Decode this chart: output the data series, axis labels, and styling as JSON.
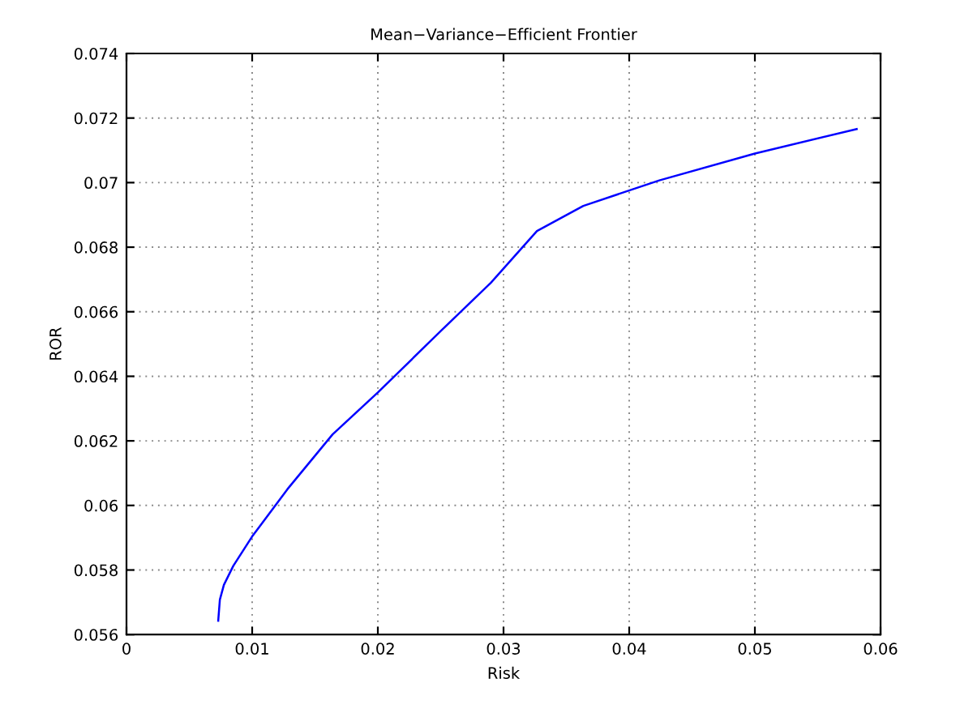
{
  "chart_data": {
    "type": "line",
    "title": "Mean−Variance−Efficient Frontier",
    "xlabel": "Risk",
    "ylabel": "ROR",
    "x": [
      0.0073,
      0.00743,
      0.00775,
      0.0085,
      0.01,
      0.0105,
      0.0128,
      0.0164,
      0.02,
      0.025,
      0.029,
      0.03266,
      0.03635,
      0.0424,
      0.05,
      0.0581
    ],
    "series": [
      {
        "color": "#0000ff",
        "values": [
          0.05643,
          0.05708,
          0.05754,
          0.05813,
          0.05904,
          0.0593,
          0.0605,
          0.0622,
          0.0635,
          0.0654,
          0.0669,
          0.0685,
          0.06928,
          0.07007,
          0.0709,
          0.07166
        ]
      }
    ],
    "xlim": [
      0,
      0.06
    ],
    "ylim": [
      0.056,
      0.074
    ],
    "xticks": [
      0,
      0.01,
      0.02,
      0.03,
      0.04,
      0.05,
      0.06
    ],
    "yticks": [
      0.056,
      0.058,
      0.06,
      0.062,
      0.064,
      0.066,
      0.068,
      0.07,
      0.072,
      0.074
    ],
    "grid": true
  }
}
